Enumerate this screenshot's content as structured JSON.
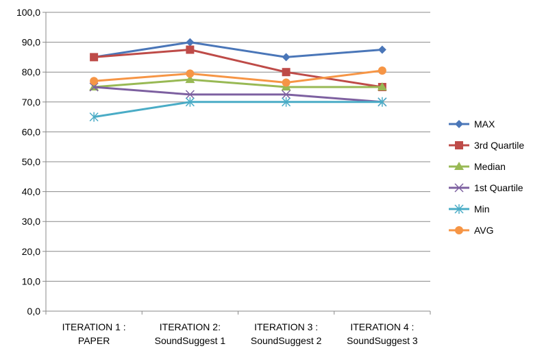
{
  "chart_data": {
    "type": "line",
    "categories": [
      [
        "ITERATION 1 :",
        "PAPER"
      ],
      [
        "ITERATION 2:",
        "SoundSuggest 1"
      ],
      [
        "ITERATION 3 :",
        "SoundSuggest 2"
      ],
      [
        "ITERATION 4 :",
        "SoundSuggest 3"
      ]
    ],
    "ylim": [
      0,
      100
    ],
    "yticks": [
      "0,0",
      "10,0",
      "20,0",
      "30,0",
      "40,0",
      "50,0",
      "60,0",
      "70,0",
      "80,0",
      "90,0",
      "100,0"
    ],
    "grid": true,
    "legend_position": "right",
    "series": [
      {
        "name": "MAX",
        "values": [
          85,
          90,
          85,
          87.5
        ],
        "color": "#4a76b8",
        "marker": "diamond"
      },
      {
        "name": "3rd Quartile",
        "values": [
          85,
          87.5,
          80,
          75
        ],
        "color": "#be4b48",
        "marker": "square"
      },
      {
        "name": "Median",
        "values": [
          75,
          77.5,
          75,
          75
        ],
        "color": "#98b954",
        "marker": "triangle"
      },
      {
        "name": "1st Quartile",
        "values": [
          75,
          72.5,
          72.5,
          70
        ],
        "color": "#7d60a0",
        "marker": "x"
      },
      {
        "name": "Min",
        "values": [
          65,
          70,
          70,
          70
        ],
        "color": "#4aacc6",
        "marker": "star"
      },
      {
        "name": "AVG",
        "values": [
          77,
          79.5,
          76.5,
          80.5
        ],
        "color": "#f69545",
        "marker": "circle"
      }
    ]
  }
}
